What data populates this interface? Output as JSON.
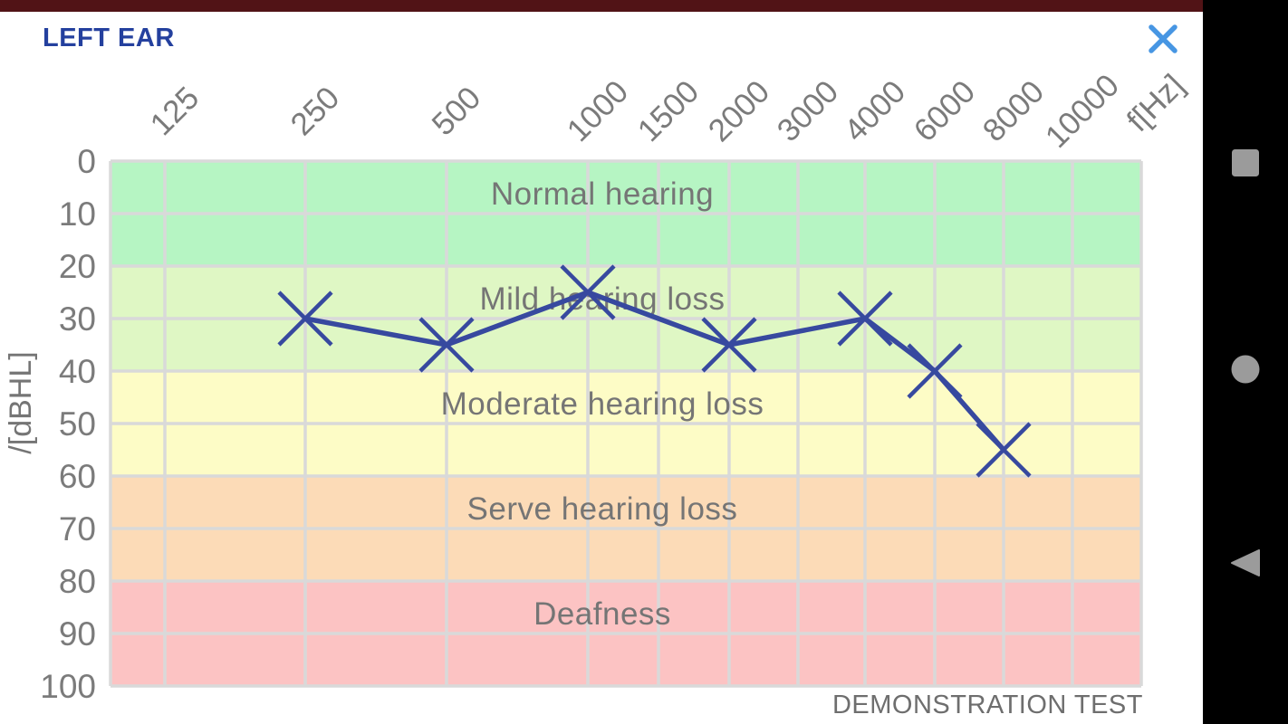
{
  "header": {
    "title": "LEFT EAR",
    "close_icon": "close-x"
  },
  "colors": {
    "status_bar": "#511316",
    "title_text": "#24409e",
    "close_icon": "#4796e3",
    "grid_line": "#d9d9d9",
    "series_line": "#37499f",
    "tick_text": "#7b7b7b",
    "band_text": "#757575",
    "watermark_text": "#6e6e6e",
    "nav_background": "#000000",
    "nav_icon": "#9b9b9b"
  },
  "chart_data": {
    "type": "line",
    "title": "LEFT EAR",
    "xlabel": "f[Hz]",
    "ylabel": "/[dBHL]",
    "x_ticks": [
      125,
      250,
      500,
      1000,
      1500,
      2000,
      3000,
      4000,
      6000,
      8000,
      10000
    ],
    "y_ticks": [
      0,
      10,
      20,
      30,
      40,
      50,
      60,
      70,
      80,
      90,
      100
    ],
    "ylim": [
      0,
      100
    ],
    "grid": "on",
    "legend": "none",
    "bands": [
      {
        "label": "Normal hearing",
        "from": 0,
        "to": 20,
        "color": "#b6f5c3"
      },
      {
        "label": "Mild hearing loss",
        "from": 20,
        "to": 40,
        "color": "#dff7c4"
      },
      {
        "label": "Moderate hearing loss",
        "from": 40,
        "to": 60,
        "color": "#fdfcc6"
      },
      {
        "label": "Serve hearing loss",
        "from": 60,
        "to": 80,
        "color": "#fcdbb7"
      },
      {
        "label": "Deafness",
        "from": 80,
        "to": 100,
        "color": "#fcc3c3"
      }
    ],
    "series": [
      {
        "name": "left-ear-thresholds",
        "marker": "x",
        "color": "#37499f",
        "points": [
          {
            "f": 250,
            "db": 30
          },
          {
            "f": 500,
            "db": 35
          },
          {
            "f": 1000,
            "db": 25
          },
          {
            "f": 2000,
            "db": 35
          },
          {
            "f": 4000,
            "db": 30
          },
          {
            "f": 6000,
            "db": 40
          },
          {
            "f": 8000,
            "db": 55
          }
        ]
      }
    ],
    "watermark": "DEMONSTRATION TEST"
  },
  "nav": {
    "buttons": [
      {
        "id": "recents",
        "icon": "square-icon"
      },
      {
        "id": "home",
        "icon": "circle-icon"
      },
      {
        "id": "back",
        "icon": "triangle-left-icon"
      }
    ]
  }
}
